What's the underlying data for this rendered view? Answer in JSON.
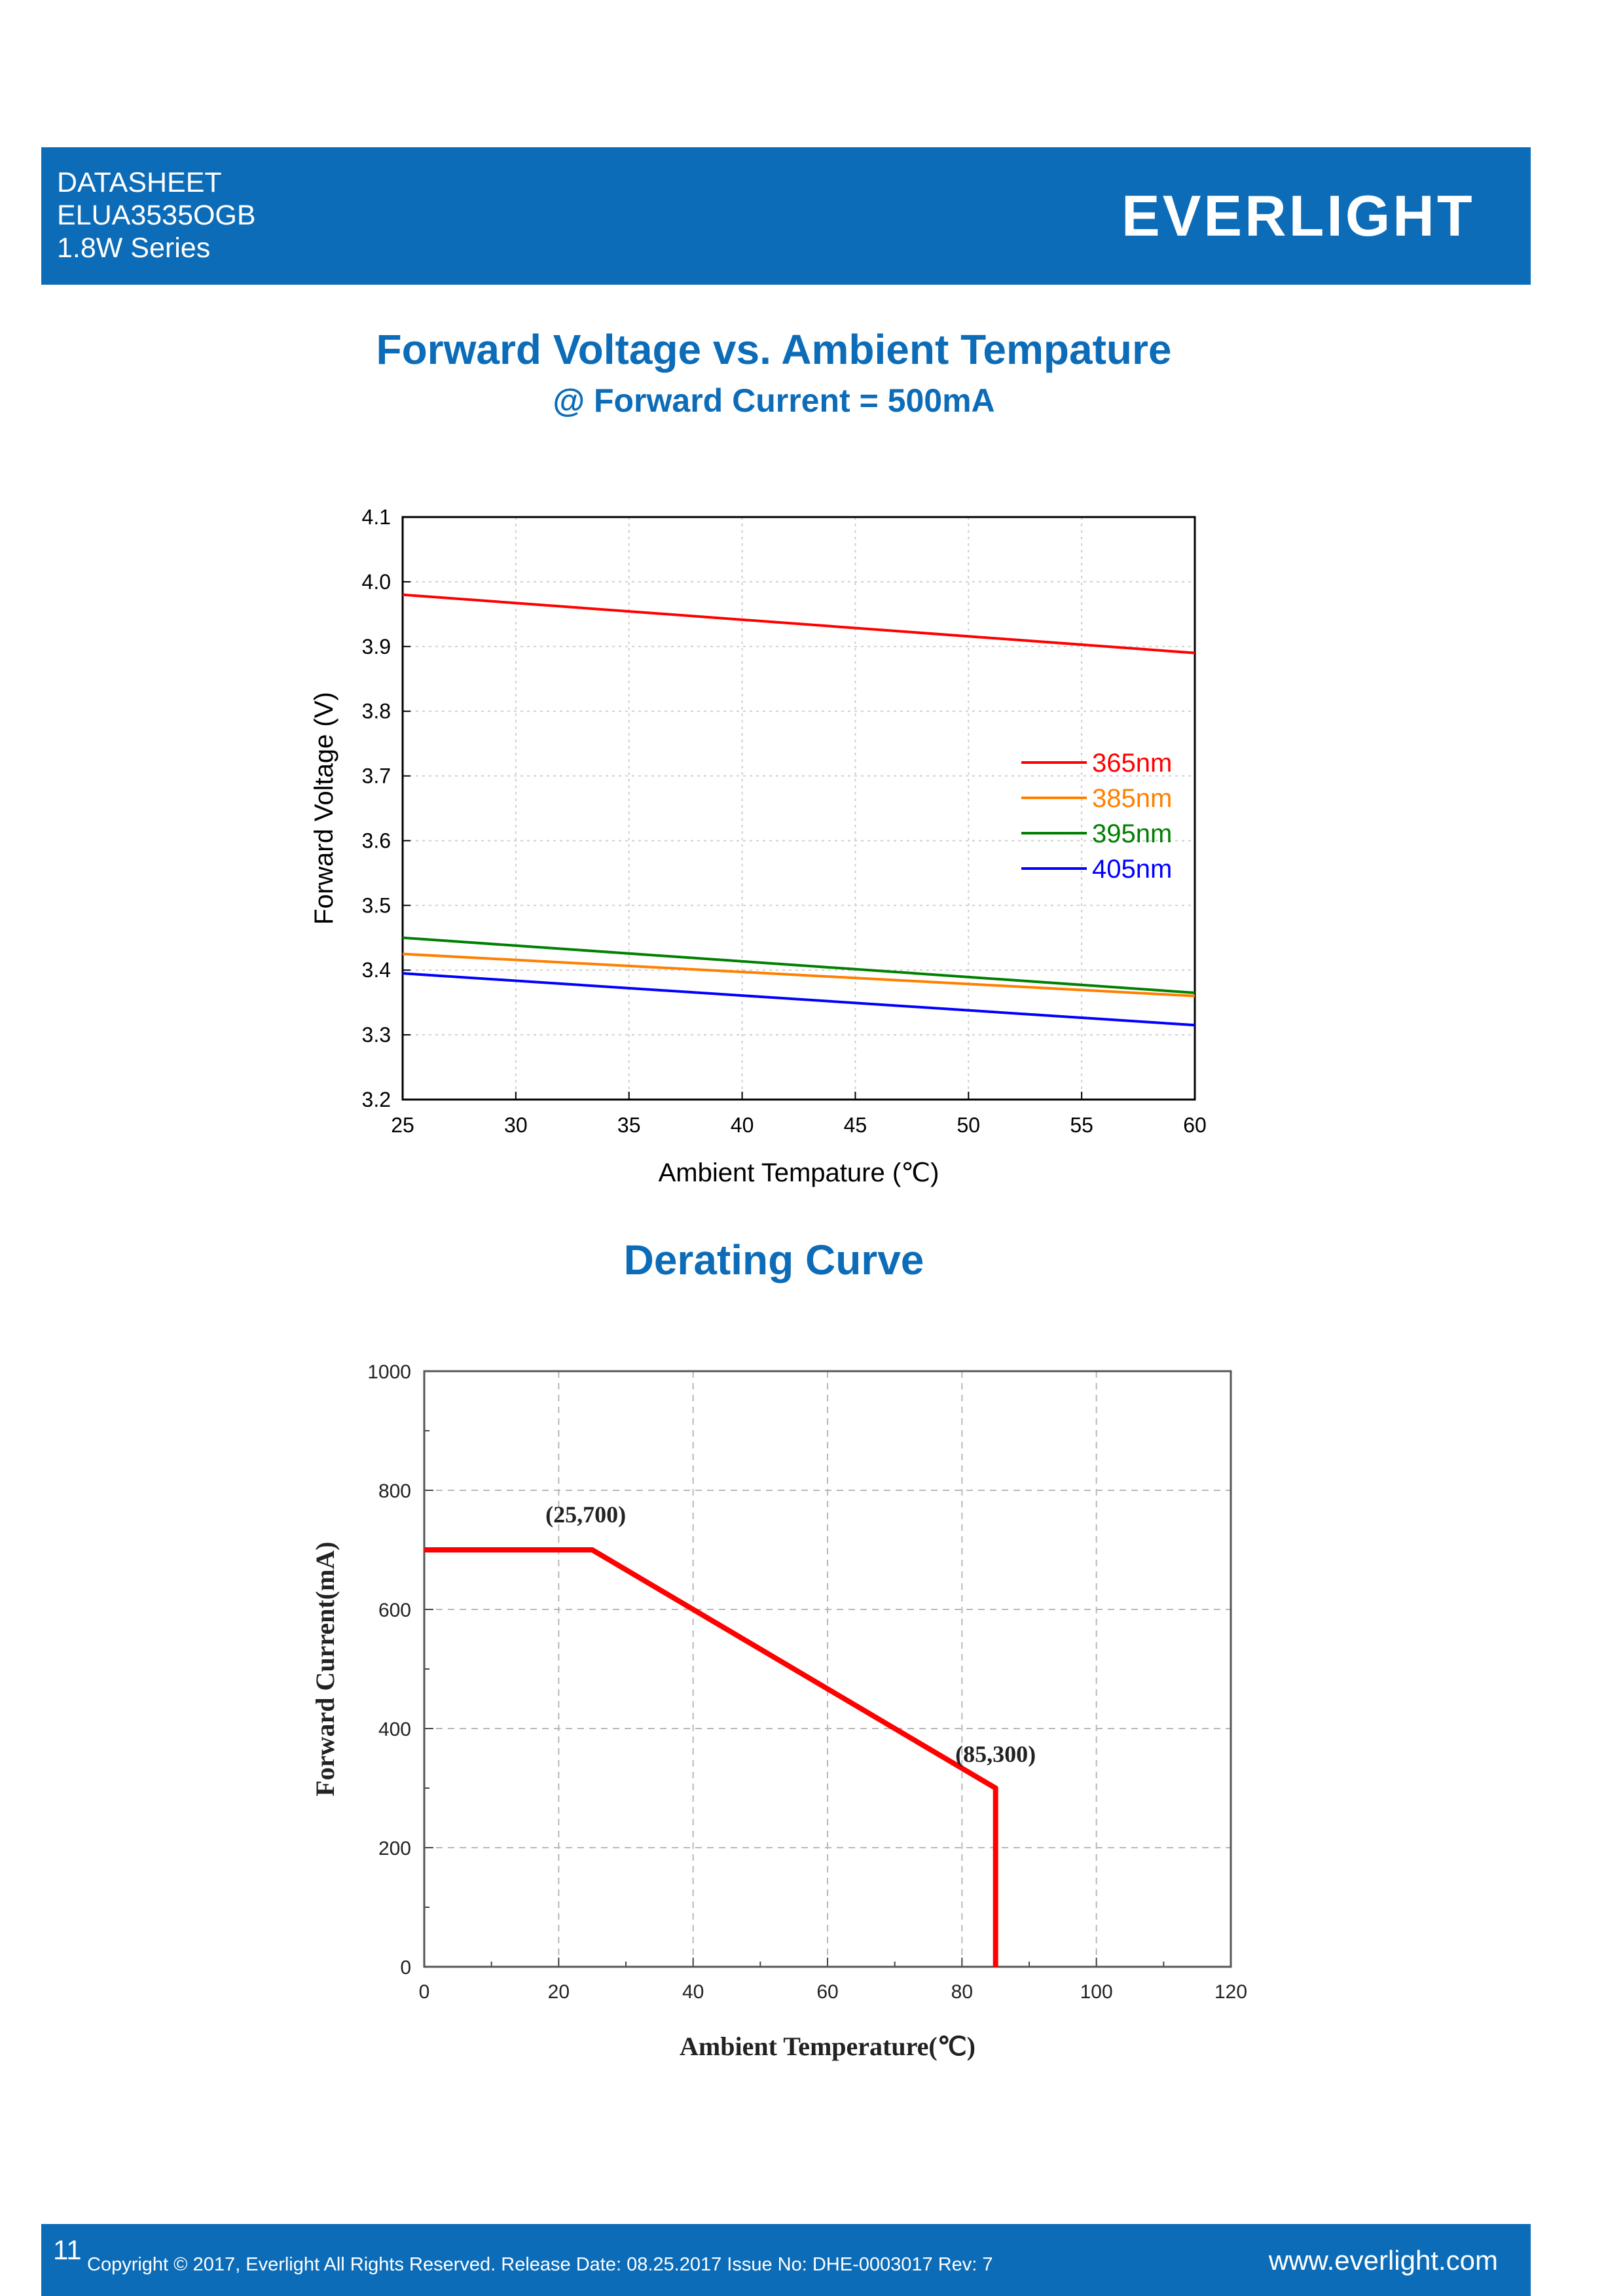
{
  "header": {
    "line1": "DATASHEET",
    "line2": "ELUA3535OGB",
    "line3": "1.8W Series",
    "brand": "EVERLIGHT"
  },
  "colors": {
    "brand_blue": "#0c6cb8"
  },
  "section1": {
    "title": "Forward Voltage vs. Ambient Tempature",
    "subtitle": "@ Forward Current = 500mA"
  },
  "section2": {
    "title": "Derating Curve"
  },
  "chart_data": [
    {
      "type": "line",
      "title": "Forward Voltage vs. Ambient Tempature",
      "subtitle": "@ Forward Current = 500mA",
      "xlabel": "Ambient Tempature  (℃)",
      "ylabel": "Forward Voltage (V)",
      "xlim": [
        25,
        60
      ],
      "ylim": [
        3.2,
        4.1
      ],
      "xticks": [
        "25",
        "30",
        "35",
        "40",
        "45",
        "50",
        "55",
        "60"
      ],
      "yticks": [
        "3.2",
        "3.3",
        "3.4",
        "3.5",
        "3.6",
        "3.7",
        "3.8",
        "3.9",
        "4.0",
        "4.1"
      ],
      "grid": true,
      "legend": "right",
      "series": [
        {
          "name": "365nm",
          "color": "#ff0000",
          "x": [
            25,
            60
          ],
          "y": [
            3.98,
            3.89
          ]
        },
        {
          "name": "385nm",
          "color": "#ff8000",
          "x": [
            25,
            60
          ],
          "y": [
            3.425,
            3.36
          ]
        },
        {
          "name": "395nm",
          "color": "#008000",
          "x": [
            25,
            60
          ],
          "y": [
            3.45,
            3.365
          ]
        },
        {
          "name": "405nm",
          "color": "#0000ff",
          "x": [
            25,
            60
          ],
          "y": [
            3.395,
            3.315
          ]
        }
      ]
    },
    {
      "type": "line",
      "title": "Derating Curve",
      "xlabel": "Ambient Temperature(℃)",
      "ylabel": "Forward Current(mA)",
      "xlim": [
        0,
        120
      ],
      "ylim": [
        0,
        1000
      ],
      "xticks": [
        "0",
        "20",
        "40",
        "60",
        "80",
        "100",
        "120"
      ],
      "yticks": [
        "0",
        "200",
        "400",
        "600",
        "800",
        "1000"
      ],
      "grid": true,
      "series": [
        {
          "color": "#ff0000",
          "x": [
            0,
            25,
            85,
            85
          ],
          "y": [
            700,
            700,
            300,
            0
          ]
        }
      ],
      "annotations": [
        {
          "text": "(25,700)",
          "x": 25,
          "y": 700
        },
        {
          "text": "(85,300)",
          "x": 85,
          "y": 300
        }
      ]
    }
  ],
  "footer": {
    "page_number": "11",
    "copyright": "Copyright © 2017, Everlight All Rights Reserved. Release Date: 08.25.2017 Issue No: DHE-0003017 Rev: 7",
    "website": "www.everlight.com"
  }
}
